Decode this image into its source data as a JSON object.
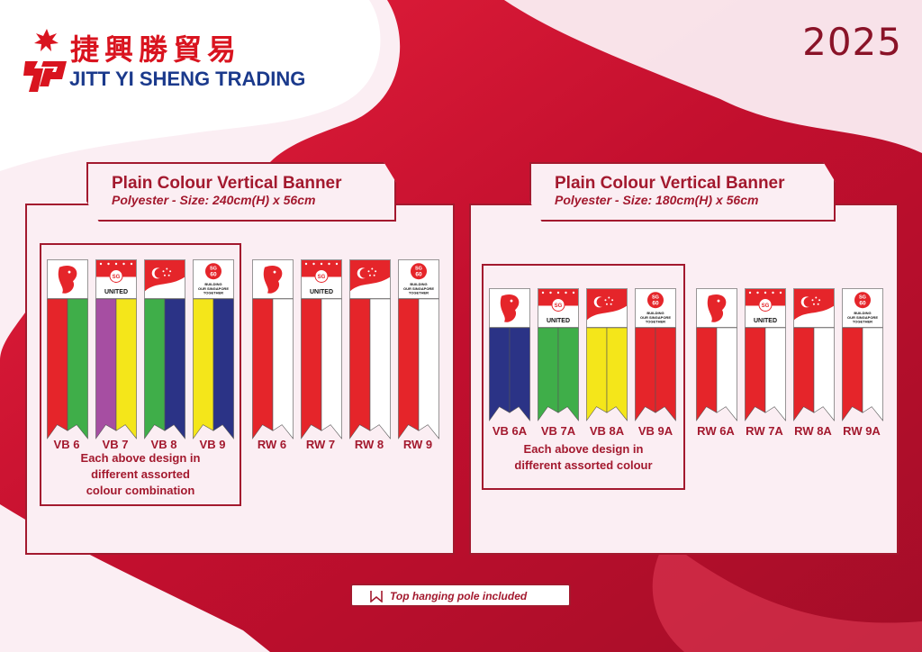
{
  "header": {
    "brand_chinese": "捷興勝貿易",
    "brand_english": "JITT YI SHENG TRADING",
    "year": "2025"
  },
  "panels": [
    {
      "title": "Plain Colour Vertical Banner",
      "subtitle": "Polyester - Size: 240cm(H) x 56cm",
      "vb_labels": [
        "VB 6",
        "VB 7",
        "VB 8",
        "VB 9"
      ],
      "rw_labels": [
        "RW 6",
        "RW 7",
        "RW 8",
        "RW 9"
      ],
      "note": [
        "Each above design in",
        "different assorted",
        "colour combination"
      ]
    },
    {
      "title": "Plain Colour Vertical Banner",
      "subtitle": "Polyester - Size: 180cm(H) x 56cm",
      "vb_labels": [
        "VB 6A",
        "VB 7A",
        "VB 8A",
        "VB 9A"
      ],
      "rw_labels": [
        "RW 6A",
        "RW 7A",
        "RW 8A",
        "RW 9A"
      ],
      "note": [
        "Each above design in",
        "different assorted colour"
      ]
    }
  ],
  "header_designs": {
    "sg_united": {
      "badge": "SG",
      "text": "UNITED"
    },
    "sg60": {
      "badge_line1": "SG",
      "badge_line2": "60",
      "line1": "BUILDING",
      "line2": "OUR SINGAPORE",
      "line3": "TOGETHER"
    }
  },
  "footer": {
    "text": "Top hanging pole included"
  },
  "colors": {
    "accent": "#a3192e",
    "red": "#e5252a",
    "green": "#3fae49",
    "purple": "#a64ea2",
    "yellow": "#f4e61a",
    "blue": "#2b3386",
    "brand_blue": "#1b3a8c"
  }
}
